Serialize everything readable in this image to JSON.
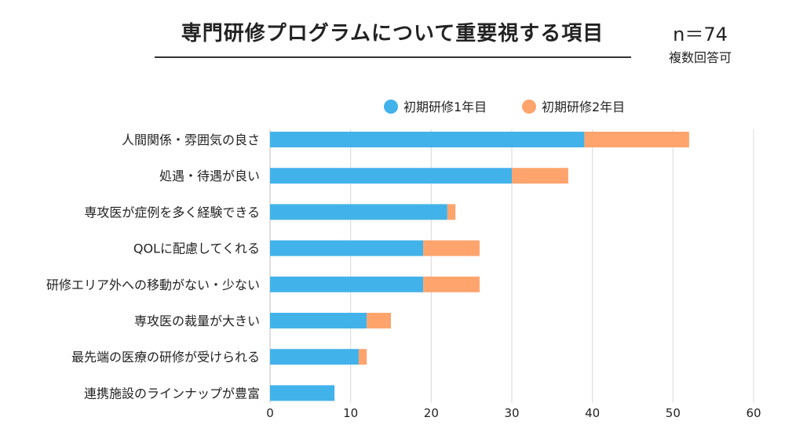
{
  "header": {
    "title": "専門研修プログラムについて重要視する項目",
    "n_label": "n＝74",
    "note": "複数回答可"
  },
  "colors": {
    "series1": "#42b2ea",
    "series2": "#fea46c",
    "grid": "#d9d9d9",
    "axis": "#bfbfbf"
  },
  "chart_data": {
    "type": "bar",
    "orientation": "horizontal",
    "stacked": true,
    "title": "専門研修プログラムについて重要視する項目",
    "xlabel": "",
    "ylabel": "",
    "xlim": [
      0,
      60
    ],
    "xticks": [
      0,
      10,
      20,
      30,
      40,
      50,
      60
    ],
    "grid": true,
    "legend_position": "top-right",
    "categories": [
      "人間関係・雰囲気の良さ",
      "処遇・待遇が良い",
      "専攻医が症例を多く経験できる",
      "QOLに配慮してくれる",
      "研修エリア外への移動がない・少ない",
      "専攻医の裁量が大きい",
      "最先端の医療の研修が受けられる",
      "連携施設のラインナップが豊富"
    ],
    "series": [
      {
        "name": "初期研修1年目",
        "values": [
          39,
          30,
          22,
          19,
          19,
          12,
          11,
          8
        ]
      },
      {
        "name": "初期研修2年目",
        "values": [
          13,
          7,
          1,
          7,
          7,
          3,
          1,
          0
        ]
      }
    ]
  }
}
